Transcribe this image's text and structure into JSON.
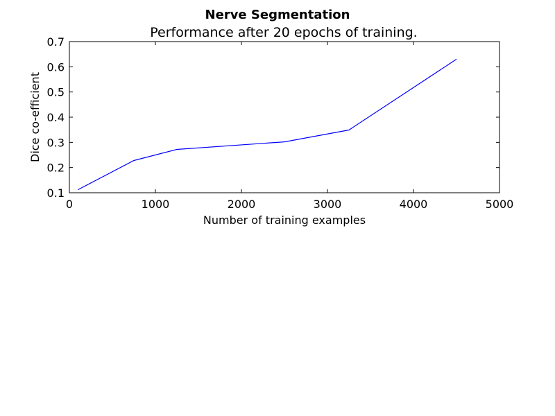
{
  "chart_data": {
    "type": "line",
    "title": "Nerve Segmentation",
    "subtitle": "Performance after 20 epochs of training.",
    "xlabel": "Number of training examples",
    "ylabel": "Dice co-efficient",
    "xlim": [
      0,
      5000
    ],
    "ylim": [
      0.1,
      0.7
    ],
    "x_ticks": [
      "0",
      "1000",
      "2000",
      "3000",
      "4000",
      "5000"
    ],
    "y_ticks": [
      "0.1",
      "0.2",
      "0.3",
      "0.4",
      "0.5",
      "0.6",
      "0.7"
    ],
    "grid": false,
    "series": [
      {
        "color": "#0000ff",
        "x": [
          100,
          750,
          1250,
          2500,
          3250,
          4500
        ],
        "y": [
          0.112,
          0.228,
          0.272,
          0.302,
          0.349,
          0.63
        ]
      }
    ]
  }
}
